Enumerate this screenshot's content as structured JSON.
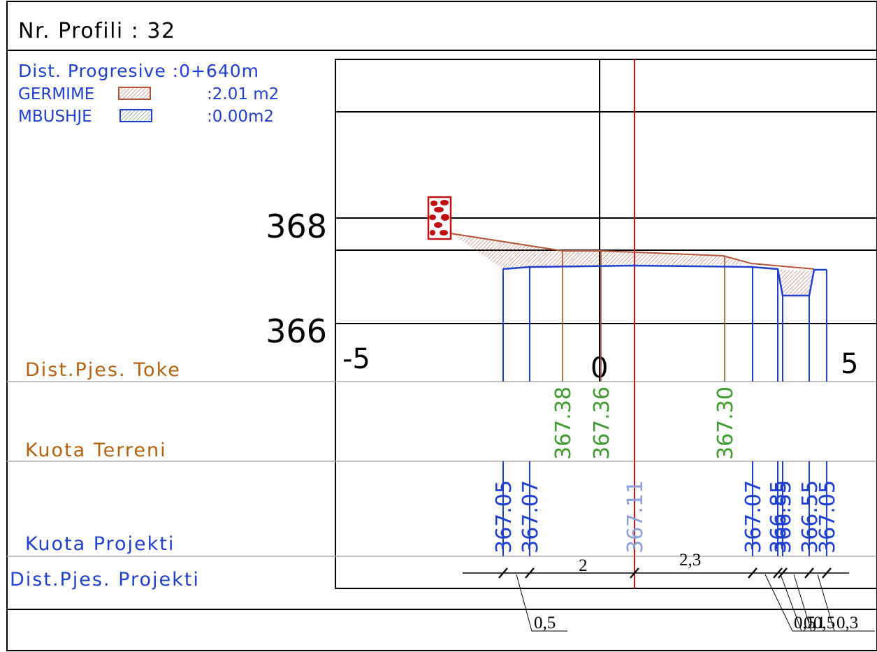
{
  "header": {
    "profile_title": "Nr. Profili : 32"
  },
  "summary": {
    "dist_label": "Dist. Progresive :0+640m",
    "cut_label": "GERMIME",
    "cut_value": ":2.01 m2",
    "fill_label": "MBUSHJE",
    "fill_value": ":0.00m2"
  },
  "colors": {
    "blue": "#1f3fd0",
    "green": "#3f9a2f",
    "orange": "#b2620e",
    "brown": "#a0522d",
    "red": "#d01010",
    "hatch_cut": "#b4553a",
    "hatch_fill": "#3a7a4a"
  },
  "axis": {
    "elev_labels": [
      "368",
      "366"
    ],
    "offset_left": "-5",
    "offset_center": "0",
    "offset_right": "5"
  },
  "band_labels": {
    "dist_toke": "Dist.Pjes. Toke",
    "kuota_terreni": "Kuota Terreni",
    "kuota_projekti": "Kuota Projekti",
    "dist_projekti": "Dist.Pjes. Projekti"
  },
  "terrain_elevations": [
    "367.38",
    "367.36",
    "367.30"
  ],
  "project_elevations": [
    "367.05",
    "367.07",
    "367.11",
    "367.07",
    "366.85",
    "366.55",
    "366.55",
    "367.05"
  ],
  "project_distances": {
    "above": [
      "2",
      "2,3"
    ],
    "below_left": "0,5",
    "below_right": [
      "0,5",
      "0,1",
      "0,5",
      "0,3"
    ]
  }
}
